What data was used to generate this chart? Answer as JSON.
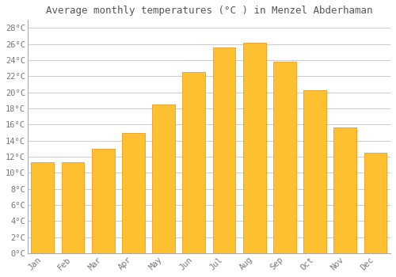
{
  "title": "Average monthly temperatures (°C ) in Menzel Abderhaman",
  "months": [
    "Jan",
    "Feb",
    "Mar",
    "Apr",
    "May",
    "Jun",
    "Jul",
    "Aug",
    "Sep",
    "Oct",
    "Nov",
    "Dec"
  ],
  "values": [
    11.3,
    11.3,
    13.0,
    15.0,
    18.5,
    22.5,
    25.6,
    26.2,
    23.8,
    20.3,
    15.6,
    12.5
  ],
  "bar_color_top": "#FCC030",
  "bar_color_bottom": "#F5A800",
  "bar_edge_color": "#E89000",
  "background_color": "#FFFFFF",
  "grid_color": "#CCCCCC",
  "title_color": "#555555",
  "tick_color": "#777777",
  "spine_color": "#AAAAAA",
  "ylim": [
    0,
    29
  ],
  "ytick_step": 2,
  "title_fontsize": 9.0,
  "tick_fontsize": 7.5,
  "font_family": "monospace",
  "bar_width": 0.75
}
